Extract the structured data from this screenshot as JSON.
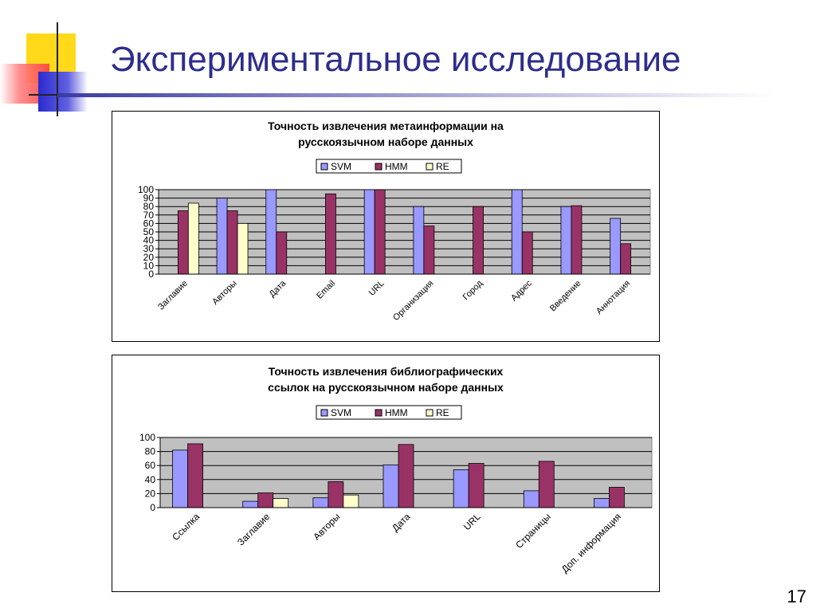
{
  "slide": {
    "title": "Экспериментальное исследование",
    "page_number": "17"
  },
  "colors": {
    "svm": "#9999ff",
    "hmm": "#993366",
    "re": "#ffffcc",
    "plot_bg": "#c0c0c0",
    "title_text": "#2d2d8c"
  },
  "chart_data": [
    {
      "type": "bar",
      "title": "Точность извлечения метаинформации на русскоязычном наборе данных",
      "title_lines": [
        "Точность извлечения метаинформации на",
        "русскоязычном наборе данных"
      ],
      "categories": [
        "Заглавие",
        "Авторы",
        "Дата",
        "Email",
        "URL",
        "Организация",
        "Город",
        "Адрес",
        "Введение",
        "Аннотация"
      ],
      "series": [
        {
          "name": "SVM",
          "values": [
            null,
            90,
            100,
            null,
            100,
            80,
            null,
            100,
            80,
            66
          ]
        },
        {
          "name": "HMM",
          "values": [
            75,
            75,
            50,
            95,
            100,
            57,
            80,
            50,
            81,
            36
          ]
        },
        {
          "name": "RE",
          "values": [
            84,
            60,
            null,
            null,
            null,
            null,
            null,
            null,
            null,
            null
          ]
        }
      ],
      "ylim": [
        0,
        100
      ],
      "yticks": [
        0,
        10,
        20,
        30,
        40,
        50,
        60,
        70,
        80,
        90,
        100
      ],
      "legend": "top-center",
      "grid": true
    },
    {
      "type": "bar",
      "title": "Точность извлечения библиографических ссылок на русскоязычном наборе данных",
      "title_lines": [
        "Точность извлечения библиографических",
        "ссылок на русскоязычном наборе данных"
      ],
      "categories": [
        "Ссылка",
        "Заглавие",
        "Авторы",
        "Дата",
        "URL",
        "Страницы",
        "Доп. информация"
      ],
      "series": [
        {
          "name": "SVM",
          "values": [
            82,
            9,
            14,
            61,
            54,
            24,
            13
          ]
        },
        {
          "name": "HMM",
          "values": [
            91,
            21,
            37,
            90,
            63,
            66,
            29
          ]
        },
        {
          "name": "RE",
          "values": [
            null,
            13,
            18,
            null,
            null,
            null,
            null
          ]
        }
      ],
      "ylim": [
        0,
        100
      ],
      "yticks": [
        0,
        20,
        40,
        60,
        80,
        100
      ],
      "legend": "top-center",
      "grid": true
    }
  ]
}
